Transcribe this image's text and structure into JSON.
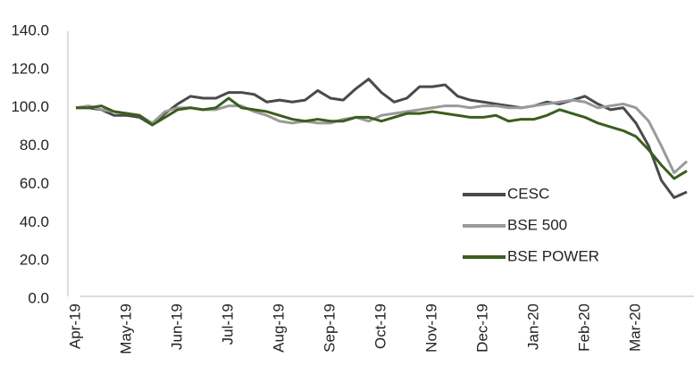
{
  "chart_data": {
    "type": "line",
    "categories": [
      "Apr-19",
      null,
      null,
      null,
      "May-19",
      null,
      null,
      null,
      "Jun-19",
      null,
      null,
      null,
      "Jul-19",
      null,
      null,
      null,
      "Aug-19",
      null,
      null,
      null,
      "Sep-19",
      null,
      null,
      null,
      "Oct-19",
      null,
      null,
      null,
      "Nov-19",
      null,
      null,
      null,
      "Dec-19",
      null,
      null,
      null,
      "Jan-20",
      null,
      null,
      null,
      "Feb-20",
      null,
      null,
      null,
      "Mar-20",
      null,
      null,
      null,
      null
    ],
    "series": [
      {
        "name": "CESC",
        "color": "#4a4a4a",
        "values": [
          100,
          100,
          99,
          96,
          96,
          95,
          91,
          97,
          102,
          106,
          105,
          105,
          108,
          108,
          107,
          103,
          104,
          103,
          104,
          109,
          105,
          104,
          110,
          115,
          108,
          103,
          105,
          111,
          111,
          112,
          106,
          104,
          103,
          102,
          101,
          100,
          101,
          103,
          102,
          104,
          106,
          102,
          99,
          100,
          92,
          80,
          62,
          53,
          56
        ]
      },
      {
        "name": "BSE 500",
        "color": "#9a9a9a",
        "values": [
          100,
          101,
          99,
          98,
          97,
          96,
          92,
          98,
          100,
          100,
          99,
          99,
          101,
          101,
          98,
          96,
          93,
          92,
          93,
          92,
          92,
          94,
          95,
          93,
          96,
          97,
          98,
          99,
          100,
          101,
          101,
          100,
          101,
          101,
          100,
          100,
          101,
          102,
          103,
          104,
          103,
          100,
          101,
          102,
          100,
          93,
          80,
          66,
          72
        ]
      },
      {
        "name": "BSE POWER",
        "color": "#3a5e1e",
        "values": [
          100,
          100,
          101,
          98,
          97,
          96,
          91,
          95,
          99,
          100,
          99,
          100,
          105,
          100,
          99,
          98,
          96,
          94,
          93,
          94,
          93,
          93,
          95,
          95,
          93,
          95,
          97,
          97,
          98,
          97,
          96,
          95,
          95,
          96,
          93,
          94,
          94,
          96,
          99,
          97,
          95,
          92,
          90,
          88,
          85,
          78,
          70,
          63,
          67
        ]
      }
    ],
    "ylim": [
      0,
      140
    ],
    "yticks": [
      {
        "value": 0,
        "label": "0.0"
      },
      {
        "value": 20,
        "label": "20.0"
      },
      {
        "value": 40,
        "label": "40.0"
      },
      {
        "value": 60,
        "label": "60.0"
      },
      {
        "value": 80,
        "label": "80.0"
      },
      {
        "value": 100,
        "label": "100.0"
      },
      {
        "value": 120,
        "label": "120.0"
      },
      {
        "value": 140,
        "label": "140.0"
      }
    ],
    "grid": false
  }
}
